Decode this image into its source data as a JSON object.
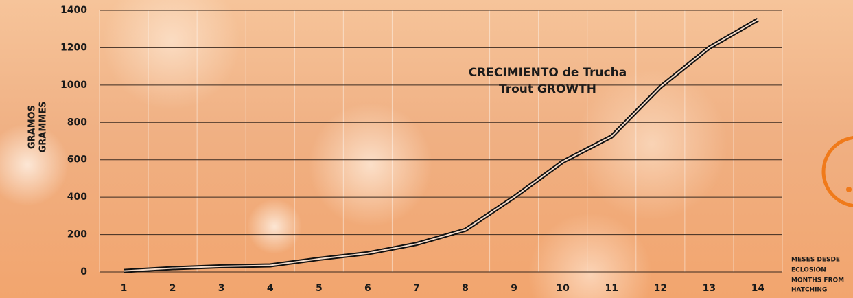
{
  "chart_data": {
    "type": "line",
    "title": [
      "CRECIMIENTO de Trucha",
      "Trout GROWTH"
    ],
    "y_label": [
      "GRAMOS",
      "GRAMMES"
    ],
    "x_label": [
      "MESES DESDE",
      "ECLOSIÓN",
      "MONTHS FROM",
      "HATCHING"
    ],
    "categories": [
      "1",
      "2",
      "3",
      "4",
      "5",
      "6",
      "7",
      "8",
      "9",
      "10",
      "11",
      "12",
      "13",
      "14"
    ],
    "values": [
      5,
      20,
      30,
      35,
      70,
      100,
      150,
      225,
      400,
      590,
      725,
      990,
      1200,
      1350
    ],
    "color": "#111111",
    "ylim": [
      0,
      1400
    ],
    "yticks": [
      0,
      200,
      400,
      600,
      800,
      1000,
      1200,
      1400
    ],
    "grid": true
  }
}
